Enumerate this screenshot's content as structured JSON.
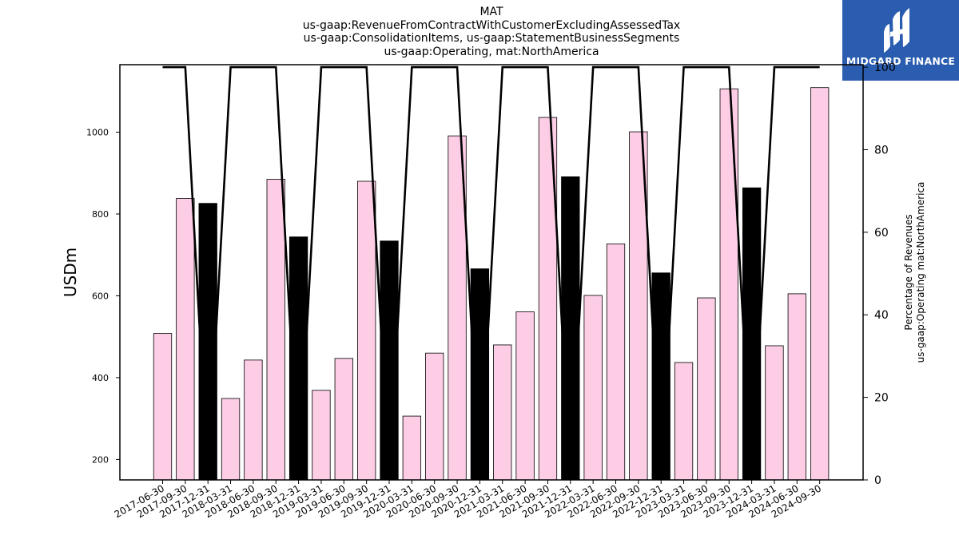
{
  "chart_data": {
    "type": "bar",
    "title_lines": [
      "MAT",
      "us-gaap:RevenueFromContractWithCustomerExcludingAssessedTax",
      "us-gaap:ConsolidationItems, us-gaap:StatementBusinessSegments",
      "us-gaap:Operating, mat:NorthAmerica"
    ],
    "ylabel": "USDm",
    "y2label_lines": [
      "Percentage of Revenues",
      "us-gaap:Operating mat:NorthAmerica"
    ],
    "categories": [
      "2017-06-30",
      "2017-09-30",
      "2017-12-31",
      "2018-03-31",
      "2018-06-30",
      "2018-09-30",
      "2018-12-31",
      "2019-03-31",
      "2019-06-30",
      "2019-09-30",
      "2019-12-31",
      "2020-03-31",
      "2020-06-30",
      "2020-09-30",
      "2020-12-31",
      "2021-03-31",
      "2021-06-30",
      "2021-09-30",
      "2021-12-31",
      "2022-03-31",
      "2022-06-30",
      "2022-09-30",
      "2022-12-31",
      "2023-03-31",
      "2023-06-30",
      "2023-09-30",
      "2023-12-31",
      "2024-03-31",
      "2024-06-30",
      "2024-09-30"
    ],
    "values": [
      508,
      838,
      826,
      349,
      443,
      885,
      744,
      369,
      447,
      880,
      734,
      306,
      460,
      991,
      666,
      480,
      561,
      1036,
      891,
      601,
      727,
      1001,
      656,
      437,
      595,
      1106,
      864,
      478,
      605,
      1109
    ],
    "q4_highlight": [
      false,
      false,
      true,
      false,
      false,
      false,
      true,
      false,
      false,
      false,
      true,
      false,
      false,
      false,
      true,
      false,
      false,
      false,
      true,
      false,
      false,
      false,
      true,
      false,
      false,
      false,
      true,
      false,
      false,
      false
    ],
    "bar_color": "#fccde5",
    "q4_bar_color": "#000000",
    "line_series": {
      "values": [
        100,
        100,
        0,
        100,
        100,
        100,
        0,
        100,
        100,
        100,
        0,
        100,
        100,
        100,
        0,
        100,
        100,
        100,
        0,
        100,
        100,
        100,
        0,
        100,
        100,
        100,
        0,
        100,
        100,
        100
      ],
      "color": "#000000"
    },
    "ylim": [
      150,
      1165
    ],
    "yticks": [
      200,
      400,
      600,
      800,
      1000
    ],
    "y2lim": [
      0,
      100.6
    ],
    "y2ticks": [
      0,
      20,
      40,
      60,
      80,
      100
    ],
    "grid": false
  },
  "logo": {
    "text": "MIDGARD FINANCE",
    "background": "#2a5caf"
  }
}
